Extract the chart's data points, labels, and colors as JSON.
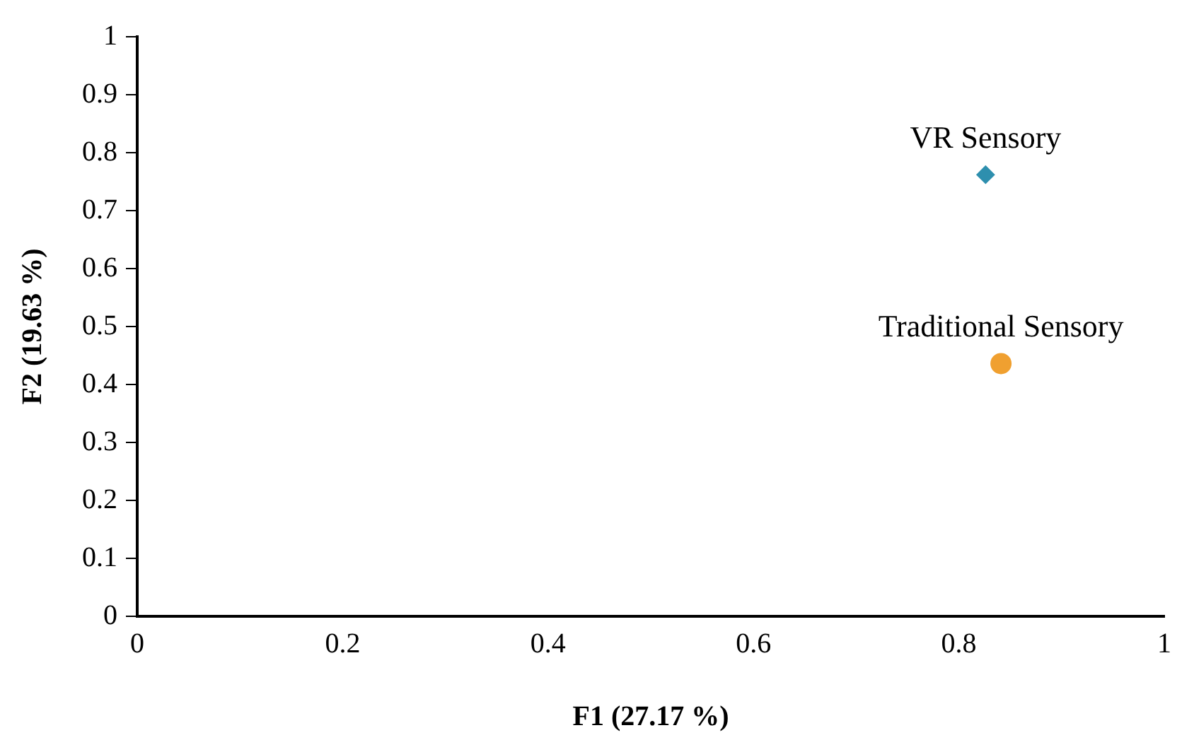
{
  "chart_data": {
    "type": "scatter",
    "xlabel": "F1 (27.17 %)",
    "ylabel": "F2 (19.63 %)",
    "xlim": [
      0,
      1
    ],
    "xticks": [
      0,
      0.2,
      0.4,
      0.6,
      0.8,
      1
    ],
    "ylim": [
      0,
      1
    ],
    "yticks": [
      0,
      0.1,
      0.2,
      0.3,
      0.4,
      0.5,
      0.6,
      0.7,
      0.8,
      0.9,
      1
    ],
    "grid": false,
    "legend": false,
    "series": [
      {
        "name": "VR Sensory",
        "color": "#2e8fae",
        "marker": "diamond",
        "x": [
          0.826
        ],
        "values": [
          0.762
        ]
      },
      {
        "name": "Traditional Sensory",
        "color": "#f0a030",
        "marker": "circle",
        "x": [
          0.841
        ],
        "values": [
          0.436
        ]
      }
    ]
  }
}
